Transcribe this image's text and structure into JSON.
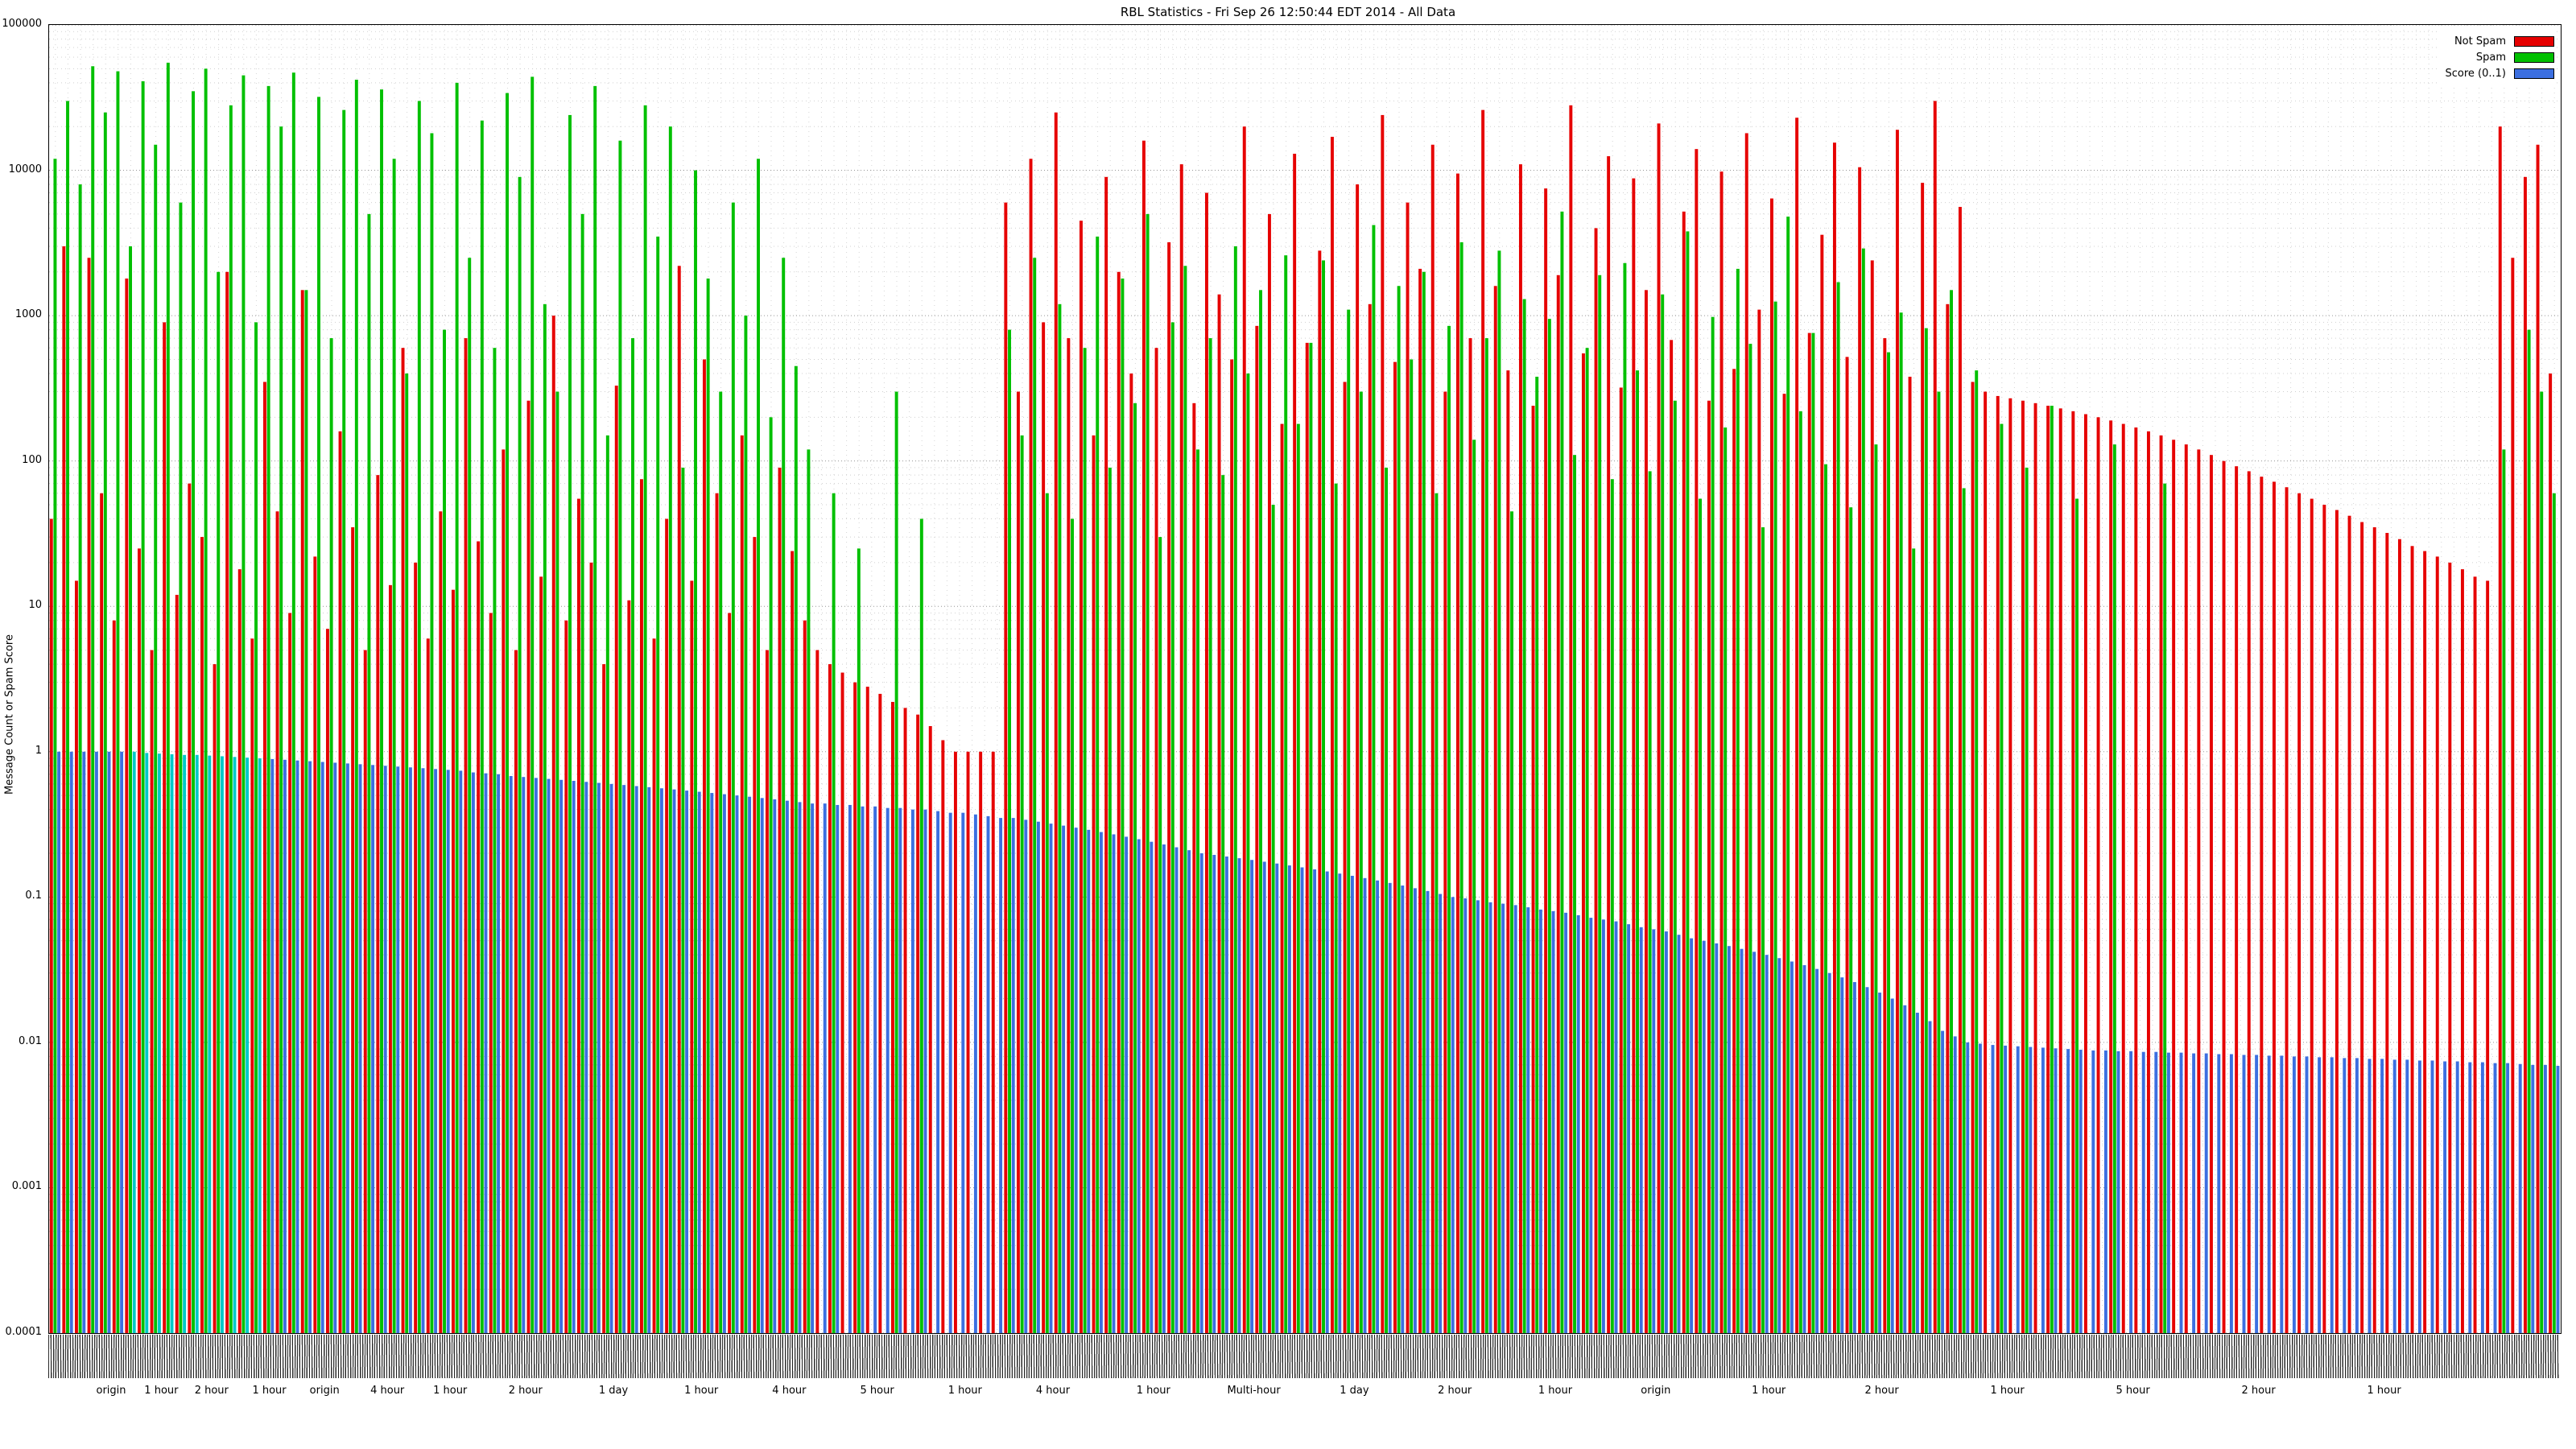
{
  "title": "RBL Statistics - Fri Sep 26 12:50:44 EDT 2014 - All Data",
  "legend": [
    {
      "label": "Not Spam",
      "color": "#e60000"
    },
    {
      "label": "Spam",
      "color": "#00c000"
    },
    {
      "label": "Score (0..1)",
      "color": "#3c6fe0"
    }
  ],
  "axes": {
    "ylabel": "Message Count or Spam Score",
    "y_ticks": [
      "100000",
      "10000",
      "1000",
      "100",
      "10",
      "1",
      "0.1",
      "0.01",
      "0.001",
      "0.0001"
    ],
    "y_values": [
      100000,
      10000,
      1000,
      100,
      10,
      1,
      0.1,
      0.01,
      0.001,
      0.0001
    ]
  },
  "x_sublabels": [
    {
      "text": "origin",
      "pct": 2.5
    },
    {
      "text": "1 hour",
      "pct": 4.5
    },
    {
      "text": "2 hour",
      "pct": 6.5
    },
    {
      "text": "1 hour",
      "pct": 8.8
    },
    {
      "text": "origin",
      "pct": 11
    },
    {
      "text": "4 hour",
      "pct": 13.5
    },
    {
      "text": "1 hour",
      "pct": 16
    },
    {
      "text": "2 hour",
      "pct": 19
    },
    {
      "text": "1 day",
      "pct": 22.5
    },
    {
      "text": "1 hour",
      "pct": 26
    },
    {
      "text": "4 hour",
      "pct": 29.5
    },
    {
      "text": "5 hour",
      "pct": 33
    },
    {
      "text": "1 hour",
      "pct": 36.5
    },
    {
      "text": "4 hour",
      "pct": 40
    },
    {
      "text": "1 hour",
      "pct": 44
    },
    {
      "text": "Multi-hour",
      "pct": 48
    },
    {
      "text": "1 day",
      "pct": 52
    },
    {
      "text": "2 hour",
      "pct": 56
    },
    {
      "text": "1 hour",
      "pct": 60
    },
    {
      "text": "origin",
      "pct": 64
    },
    {
      "text": "1 hour",
      "pct": 68.5
    },
    {
      "text": "2 hour",
      "pct": 73
    },
    {
      "text": "1 hour",
      "pct": 78
    },
    {
      "text": "5 hour",
      "pct": 83
    },
    {
      "text": "2 hour",
      "pct": 88
    },
    {
      "text": "1 hour",
      "pct": 93
    }
  ],
  "chart_data": {
    "type": "bar",
    "log_y": true,
    "ylim": [
      0.0001,
      100000
    ],
    "title": "RBL Statistics - Fri Sep 26 12:50:44 EDT 2014 - All Data",
    "ylabel": "Message Count or Spam Score",
    "legend_position": "top-right",
    "grid": true,
    "cyan_range": [
      6,
      16
    ],
    "cyan_color": "#00c8c8",
    "series": [
      {
        "name": "Not Spam",
        "color": "#e60000",
        "values": [
          40,
          3000,
          15,
          2500,
          60,
          8,
          1800,
          25,
          5,
          900,
          12,
          70,
          30,
          4,
          2000,
          18,
          6,
          350,
          45,
          9,
          1500,
          22,
          7,
          160,
          35,
          5,
          80,
          14,
          600,
          20,
          6,
          45,
          13,
          700,
          28,
          9,
          120,
          5,
          260,
          16,
          1000,
          8,
          55,
          20,
          4,
          330,
          11,
          75,
          6,
          40,
          2200,
          15,
          500,
          60,
          9,
          150,
          30,
          5,
          90,
          24,
          8,
          5,
          4,
          3.5,
          3,
          2.8,
          2.5,
          2.2,
          2,
          1.8,
          1.5,
          1.2,
          1,
          1,
          1,
          1,
          6000,
          300,
          12000,
          900,
          25000,
          700,
          4500,
          150,
          9000,
          2000,
          400,
          16000,
          600,
          3200,
          11000,
          250,
          7000,
          1400,
          500,
          20000,
          850,
          5000,
          180,
          13000,
          650,
          2800,
          17000,
          350,
          8000,
          1200,
          24000,
          480,
          6000,
          2100,
          15000,
          300,
          9500,
          700,
          26000,
          1600,
          420,
          11000,
          240,
          7500,
          1900,
          28000,
          550,
          4000,
          12500,
          320,
          8800,
          1500,
          21000,
          680,
          5200,
          14000,
          260,
          9800,
          430,
          18000,
          1100,
          6400,
          290,
          23000,
          760,
          3600,
          15500,
          520,
          10500,
          2400,
          700,
          19000,
          380,
          8200,
          30000,
          1200,
          5600,
          350,
          300,
          280,
          270,
          260,
          250,
          240,
          230,
          220,
          210,
          200,
          190,
          180,
          170,
          160,
          150,
          140,
          130,
          120,
          110,
          100,
          92,
          85,
          78,
          72,
          66,
          60,
          55,
          50,
          46,
          42,
          38,
          35,
          32,
          29,
          26,
          24,
          22,
          20,
          18,
          16,
          15,
          20000,
          2500,
          9000,
          15000,
          400
        ]
      },
      {
        "name": "Spam",
        "color": "#00c000",
        "values": [
          12000,
          30000,
          8000,
          52000,
          25000,
          48000,
          3000,
          41000,
          15000,
          55000,
          6000,
          35000,
          50000,
          2000,
          28000,
          45000,
          900,
          38000,
          20000,
          47000,
          1500,
          32000,
          700,
          26000,
          42000,
          5000,
          36000,
          12000,
          400,
          30000,
          18000,
          800,
          40000,
          2500,
          22000,
          600,
          34000,
          9000,
          44000,
          1200,
          300,
          24000,
          5000,
          38000,
          150,
          16000,
          700,
          28000,
          3500,
          20000,
          90,
          10000,
          1800,
          300,
          6000,
          1000,
          12000,
          200,
          2500,
          450,
          120,
          0,
          60,
          0,
          25,
          0,
          0,
          300,
          0,
          40,
          0,
          0,
          0,
          0,
          0,
          0,
          800,
          150,
          2500,
          60,
          1200,
          40,
          600,
          3500,
          90,
          1800,
          250,
          5000,
          30,
          900,
          2200,
          120,
          700,
          80,
          3000,
          400,
          1500,
          50,
          2600,
          180,
          650,
          2400,
          70,
          1100,
          300,
          4200,
          90,
          1600,
          500,
          2000,
          60,
          850,
          3200,
          140,
          700,
          2800,
          45,
          1300,
          380,
          950,
          5200,
          110,
          600,
          1900,
          75,
          2300,
          420,
          85,
          1400,
          260,
          3800,
          55,
          980,
          170,
          2100,
          640,
          35,
          1250,
          4800,
          220,
          760,
          95,
          1700,
          48,
          2900,
          130,
          560,
          1050,
          25,
          820,
          300,
          1500,
          65,
          420,
          0,
          180,
          0,
          90,
          0,
          240,
          0,
          55,
          0,
          0,
          130,
          0,
          0,
          0,
          70,
          0,
          0,
          0,
          0,
          0,
          0,
          0,
          0,
          0,
          0,
          0,
          0,
          0,
          0,
          0,
          0,
          0,
          0,
          0,
          0,
          0,
          0,
          0,
          0,
          0,
          0,
          120,
          0,
          800,
          300,
          60
        ]
      },
      {
        "name": "Score (0..1)",
        "color": "#3c6fe0",
        "values": [
          1,
          1,
          1,
          1,
          1,
          1,
          1,
          0.98,
          0.97,
          0.96,
          0.95,
          0.95,
          0.94,
          0.93,
          0.92,
          0.91,
          0.9,
          0.89,
          0.88,
          0.87,
          0.86,
          0.85,
          0.84,
          0.83,
          0.82,
          0.81,
          0.8,
          0.79,
          0.78,
          0.77,
          0.76,
          0.75,
          0.74,
          0.72,
          0.71,
          0.7,
          0.68,
          0.67,
          0.66,
          0.65,
          0.64,
          0.63,
          0.62,
          0.61,
          0.6,
          0.59,
          0.58,
          0.57,
          0.56,
          0.55,
          0.54,
          0.53,
          0.52,
          0.51,
          0.5,
          0.49,
          0.48,
          0.47,
          0.46,
          0.45,
          0.44,
          0.44,
          0.43,
          0.43,
          0.42,
          0.42,
          0.41,
          0.41,
          0.4,
          0.4,
          0.39,
          0.38,
          0.38,
          0.37,
          0.36,
          0.35,
          0.35,
          0.34,
          0.33,
          0.32,
          0.31,
          0.3,
          0.29,
          0.28,
          0.27,
          0.26,
          0.25,
          0.24,
          0.23,
          0.22,
          0.21,
          0.2,
          0.195,
          0.19,
          0.185,
          0.18,
          0.175,
          0.17,
          0.165,
          0.16,
          0.155,
          0.15,
          0.145,
          0.14,
          0.135,
          0.13,
          0.125,
          0.12,
          0.115,
          0.11,
          0.105,
          0.1,
          0.098,
          0.095,
          0.092,
          0.09,
          0.088,
          0.085,
          0.082,
          0.08,
          0.078,
          0.075,
          0.072,
          0.07,
          0.068,
          0.065,
          0.062,
          0.06,
          0.058,
          0.055,
          0.052,
          0.05,
          0.048,
          0.046,
          0.044,
          0.042,
          0.04,
          0.038,
          0.036,
          0.034,
          0.032,
          0.03,
          0.028,
          0.026,
          0.024,
          0.022,
          0.02,
          0.018,
          0.016,
          0.014,
          0.012,
          0.011,
          0.01,
          0.0098,
          0.0096,
          0.0095,
          0.0094,
          0.0093,
          0.0092,
          0.0091,
          0.009,
          0.0089,
          0.0088,
          0.0088,
          0.0087,
          0.0087,
          0.0086,
          0.0086,
          0.0085,
          0.0085,
          0.0084,
          0.0084,
          0.0083,
          0.0083,
          0.0082,
          0.0082,
          0.0081,
          0.0081,
          0.008,
          0.008,
          0.0079,
          0.0079,
          0.0078,
          0.0078,
          0.0077,
          0.0077,
          0.0076,
          0.0076,
          0.0075,
          0.0075,
          0.0074,
          0.0074,
          0.0073,
          0.0073,
          0.0072,
          0.0072,
          0.0071,
          0.007,
          0.007,
          0.0069
        ]
      }
    ]
  }
}
